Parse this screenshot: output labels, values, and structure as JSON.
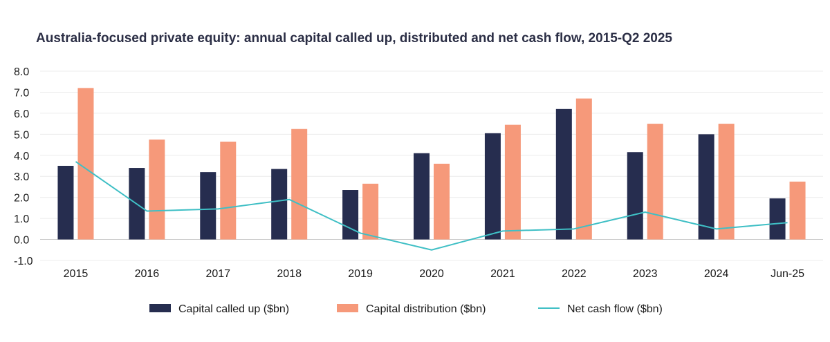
{
  "chart_data": {
    "type": "bar",
    "title": "Australia-focused private equity: annual capital called up, distributed and net cash flow, 2015-Q2 2025",
    "xlabel": "",
    "ylabel": "",
    "categories": [
      "2015",
      "2016",
      "2017",
      "2018",
      "2019",
      "2020",
      "2021",
      "2022",
      "2023",
      "2024",
      "Jun-25"
    ],
    "ylim": [
      -1.0,
      8.0
    ],
    "yticks": [
      "8.0",
      "7.0",
      "6.0",
      "5.0",
      "4.0",
      "3.0",
      "2.0",
      "1.0",
      "0.0",
      "-1.0"
    ],
    "grid": true,
    "legend_position": "bottom",
    "series": [
      {
        "name": "Capital called up ($bn)",
        "kind": "bar",
        "color": "#262d4f",
        "values": [
          3.5,
          3.4,
          3.2,
          3.35,
          2.35,
          4.1,
          5.05,
          6.2,
          4.15,
          5.0,
          1.95
        ]
      },
      {
        "name": "Capital distribution ($bn)",
        "kind": "bar",
        "color": "#f6997a",
        "values": [
          7.2,
          4.75,
          4.65,
          5.25,
          2.65,
          3.6,
          5.45,
          6.7,
          5.5,
          5.5,
          2.75
        ]
      },
      {
        "name": "Net cash flow ($bn)",
        "kind": "line",
        "color": "#3fbfc5",
        "values": [
          3.7,
          1.35,
          1.45,
          1.9,
          0.3,
          -0.5,
          0.4,
          0.5,
          1.3,
          0.5,
          0.8
        ]
      }
    ]
  }
}
